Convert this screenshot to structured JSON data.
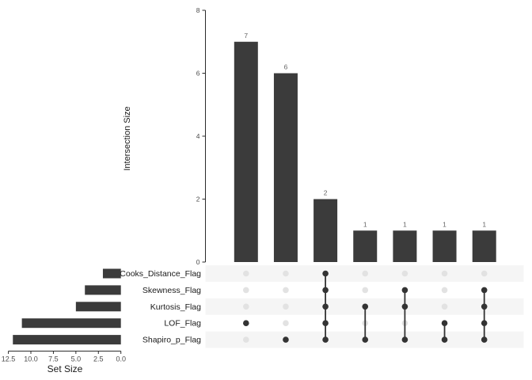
{
  "chart_data": {
    "type": "bar",
    "variant": "upset-plot",
    "title": "",
    "intersection_axis": {
      "label": "Intersection Size",
      "ticks": [
        0,
        2,
        4,
        6,
        8
      ],
      "range": [
        0,
        8
      ]
    },
    "set_axis": {
      "label": "Set Size",
      "ticks": [
        "12.5",
        "10.0",
        "7.5",
        "5.0",
        "2.5",
        "0.0"
      ],
      "range": [
        12.5,
        0
      ]
    },
    "sets": [
      {
        "name": "Cooks_Distance_Flag",
        "size": 2
      },
      {
        "name": "Skewness_Flag",
        "size": 4
      },
      {
        "name": "Kurtosis_Flag",
        "size": 5
      },
      {
        "name": "LOF_Flag",
        "size": 11
      },
      {
        "name": "Shapiro_p_Flag",
        "size": 12
      }
    ],
    "intersections": [
      {
        "value": 7,
        "members": [
          "LOF_Flag"
        ]
      },
      {
        "value": 6,
        "members": [
          "Shapiro_p_Flag"
        ]
      },
      {
        "value": 2,
        "members": [
          "Cooks_Distance_Flag",
          "Skewness_Flag",
          "Kurtosis_Flag",
          "LOF_Flag",
          "Shapiro_p_Flag"
        ]
      },
      {
        "value": 1,
        "members": [
          "Kurtosis_Flag",
          "Shapiro_p_Flag"
        ]
      },
      {
        "value": 1,
        "members": [
          "Skewness_Flag",
          "Kurtosis_Flag",
          "Shapiro_p_Flag"
        ]
      },
      {
        "value": 1,
        "members": [
          "LOF_Flag",
          "Shapiro_p_Flag"
        ]
      },
      {
        "value": 1,
        "members": [
          "Skewness_Flag",
          "Kurtosis_Flag",
          "LOF_Flag",
          "Shapiro_p_Flag"
        ]
      }
    ],
    "layout_hints": {
      "grid": "off",
      "legend": "none",
      "matrix_row_striping": "odd-rows"
    },
    "colors": {
      "bar": "#3b3b3b",
      "dot_active": "#333333",
      "dot_inactive": "#e2e2e2",
      "stripe": "#f5f5f5",
      "axis": "#2b2b2b",
      "tick_text": "#4d4d4d",
      "bar_label": "#666666",
      "set_label_text": "#1a1a1a",
      "background": "#ffffff"
    }
  }
}
